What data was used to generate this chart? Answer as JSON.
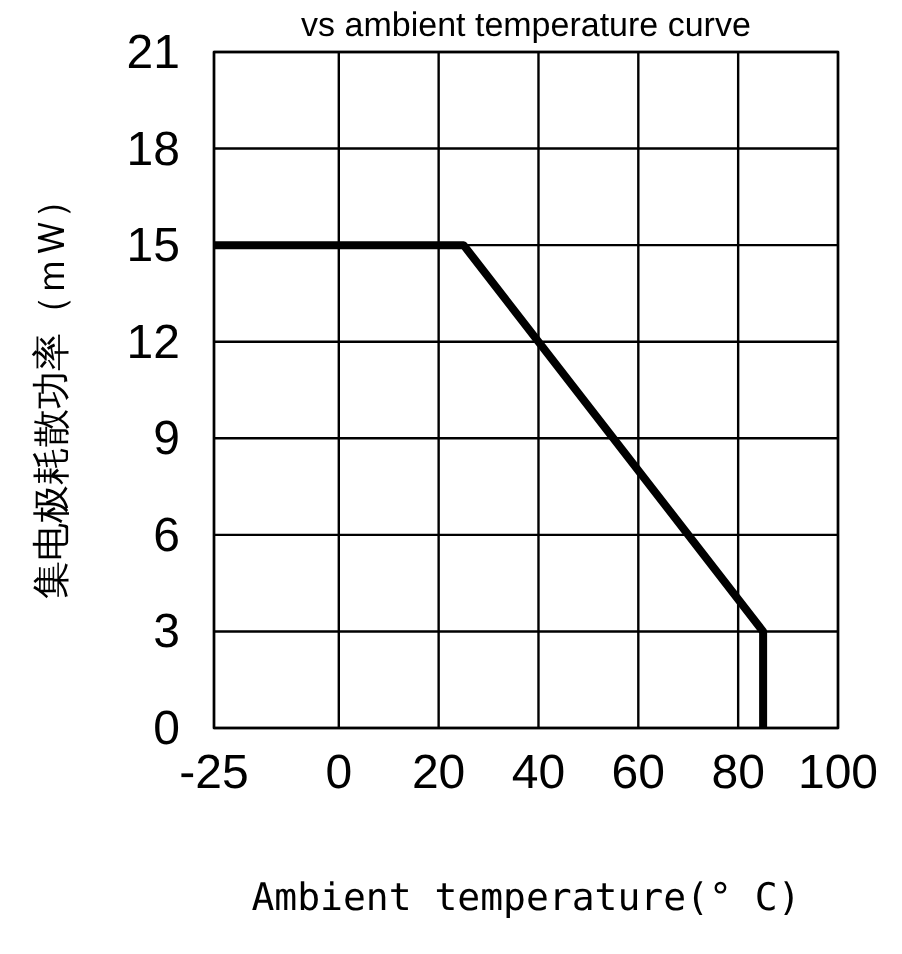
{
  "chart_data": {
    "type": "line",
    "title": "vs ambient temperature curve",
    "xlabel": "Ambient temperature(° C)",
    "ylabel": "集电极耗散功率（ｍＷ）",
    "x": [
      -25,
      25,
      85,
      85
    ],
    "series": [
      {
        "color": "#000000",
        "values": [
          15,
          15,
          3,
          0
        ]
      }
    ],
    "xlim": [
      -25,
      100
    ],
    "xticks": [
      -25,
      0,
      20,
      40,
      60,
      80,
      100
    ],
    "ylim": [
      0,
      21
    ],
    "yticks": [
      0,
      3,
      6,
      9,
      12,
      15,
      18,
      21
    ],
    "grid": true,
    "marker": "none",
    "line_style": "solid"
  }
}
